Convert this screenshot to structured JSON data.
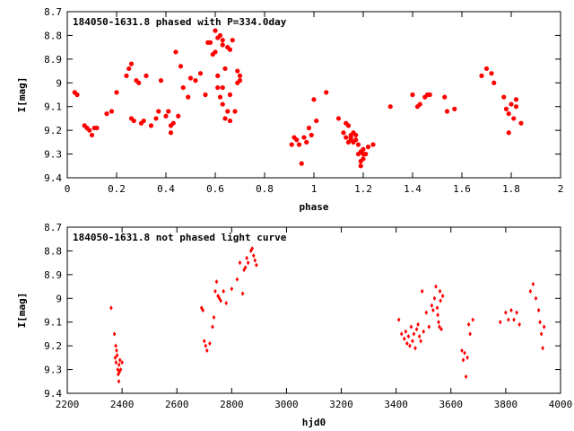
{
  "chart_data": [
    {
      "type": "scatter",
      "title": "184050-1631.8 phased with P=334.0day",
      "xlabel": "phase",
      "ylabel": "I[mag]",
      "xlim": [
        0,
        2
      ],
      "ylim": [
        8.7,
        9.4
      ],
      "y_inverted": true,
      "xticks": [
        "0",
        "0.2",
        "0.4",
        "0.6",
        "0.8",
        "1",
        "1.2",
        "1.4",
        "1.6",
        "1.8",
        "2"
      ],
      "yticks": [
        "8.7",
        "8.8",
        "8.9",
        "9",
        "9.1",
        "9.2",
        "9.3",
        "9.4"
      ],
      "grid": false,
      "marker": "filled-circle",
      "color": "#ff0000",
      "series": [
        {
          "x": [
            0.03,
            0.04,
            0.07,
            0.08,
            0.09,
            0.1,
            0.11,
            0.12,
            0.16,
            0.18,
            0.2,
            0.24,
            0.25,
            0.26,
            0.26,
            0.27,
            0.28,
            0.29,
            0.3,
            0.31,
            0.32,
            0.34,
            0.36,
            0.37,
            0.38,
            0.4,
            0.41,
            0.42,
            0.42,
            0.43,
            0.44,
            0.45,
            0.46,
            0.47,
            0.49,
            0.5,
            0.52,
            0.54,
            0.56,
            0.57,
            0.58,
            0.59,
            0.6,
            0.6,
            0.61,
            0.61,
            0.61,
            0.62,
            0.62,
            0.63,
            0.63,
            0.63,
            0.63,
            0.64,
            0.64,
            0.65,
            0.65,
            0.66,
            0.66,
            0.66,
            0.67,
            0.68,
            0.69,
            0.69,
            0.7,
            0.7
          ],
          "y": [
            9.04,
            9.05,
            9.18,
            9.19,
            9.2,
            9.22,
            9.19,
            9.19,
            9.13,
            9.12,
            9.04,
            8.97,
            8.94,
            9.15,
            8.92,
            9.16,
            8.99,
            9.0,
            9.17,
            9.16,
            8.97,
            9.18,
            9.15,
            9.12,
            8.99,
            9.14,
            9.12,
            9.21,
            9.18,
            9.17,
            8.87,
            9.14,
            8.93,
            9.02,
            9.06,
            8.98,
            8.99,
            8.96,
            9.05,
            8.83,
            8.83,
            8.88,
            8.78,
            8.87,
            8.81,
            8.97,
            9.02,
            8.8,
            9.06,
            8.82,
            9.02,
            9.09,
            8.84,
            8.94,
            9.15,
            8.85,
            9.12,
            8.86,
            9.05,
            9.16,
            8.82,
            9.12,
            8.95,
            9.0,
            8.97,
            8.99
          ]
        },
        {
          "x": [
            0.91,
            0.92,
            0.93,
            0.94,
            0.95,
            0.96,
            0.97,
            0.98,
            0.99,
            1.0,
            1.01,
            1.05,
            1.1,
            1.12,
            1.13,
            1.13,
            1.14,
            1.14,
            1.15,
            1.15,
            1.15,
            1.16,
            1.16,
            1.17,
            1.17,
            1.18,
            1.18,
            1.19,
            1.19,
            1.19,
            1.2,
            1.2,
            1.2,
            1.21,
            1.22,
            1.24
          ],
          "y": [
            9.26,
            9.23,
            9.24,
            9.26,
            9.34,
            9.23,
            9.25,
            9.19,
            9.22,
            9.07,
            9.16,
            9.04,
            9.15,
            9.21,
            9.23,
            9.17,
            9.25,
            9.18,
            9.22,
            9.24,
            9.23,
            9.25,
            9.21,
            9.24,
            9.22,
            9.3,
            9.26,
            9.35,
            9.29,
            9.33,
            9.32,
            9.28,
            9.3,
            9.3,
            9.27,
            9.26
          ]
        },
        {
          "x": [
            1.31,
            1.4,
            1.42,
            1.43,
            1.45,
            1.46,
            1.47,
            1.53,
            1.54,
            1.57,
            1.68,
            1.7,
            1.72,
            1.73,
            1.77,
            1.78,
            1.79,
            1.79,
            1.8,
            1.81,
            1.82,
            1.82,
            1.84
          ],
          "y": [
            9.1,
            9.05,
            9.1,
            9.09,
            9.06,
            9.05,
            9.05,
            9.06,
            9.12,
            9.11,
            8.97,
            8.94,
            8.96,
            9.0,
            9.06,
            9.11,
            9.13,
            9.21,
            9.09,
            9.15,
            9.07,
            9.1,
            9.17
          ]
        }
      ]
    },
    {
      "type": "scatter",
      "title": "184050-1631.8 not phased light curve",
      "xlabel": "hjd0",
      "ylabel": "I[mag]",
      "xlim": [
        2200,
        4000
      ],
      "ylim": [
        8.7,
        9.4
      ],
      "y_inverted": true,
      "xticks": [
        "2200",
        "2400",
        "2600",
        "2800",
        "3000",
        "3200",
        "3400",
        "3600",
        "3800",
        "4000"
      ],
      "yticks": [
        "8.7",
        "8.8",
        "8.9",
        "9",
        "9.1",
        "9.2",
        "9.3",
        "9.4"
      ],
      "grid": false,
      "marker": "small-diamond",
      "color": "#ff0000",
      "series": [
        {
          "x": [
            2360,
            2372,
            2375,
            2377,
            2378,
            2380,
            2382,
            2384,
            2386,
            2388,
            2389,
            2390,
            2392,
            2395,
            2400,
            2690,
            2695,
            2700,
            2705,
            2710,
            2720,
            2730,
            2735,
            2740,
            2745,
            2750,
            2755,
            2760,
            2770,
            2780,
            2800,
            2820,
            2830,
            2840,
            2845,
            2850,
            2855,
            2860,
            2870,
            2875,
            2880,
            2885,
            2890
          ],
          "y": [
            9.04,
            9.15,
            9.25,
            9.2,
            9.27,
            9.22,
            9.24,
            9.3,
            9.32,
            9.35,
            9.28,
            9.31,
            9.26,
            9.3,
            9.27,
            9.04,
            9.05,
            9.18,
            9.2,
            9.22,
            9.19,
            9.12,
            9.08,
            8.97,
            8.93,
            8.99,
            9.0,
            9.01,
            8.97,
            9.02,
            8.96,
            8.92,
            8.85,
            8.98,
            8.88,
            8.87,
            8.83,
            8.85,
            8.8,
            8.79,
            8.82,
            8.84,
            8.86
          ]
        },
        {
          "x": [
            3410,
            3420,
            3430,
            3435,
            3440,
            3445,
            3450,
            3455,
            3460,
            3465,
            3470,
            3475,
            3480,
            3485,
            3490,
            3495,
            3500,
            3510,
            3520,
            3530,
            3535,
            3540,
            3545,
            3550,
            3552,
            3555,
            3558,
            3560,
            3562,
            3565,
            3570,
            3640,
            3645,
            3650,
            3655,
            3660,
            3665,
            3670,
            3680,
            3780,
            3800,
            3810,
            3820,
            3830,
            3840,
            3850,
            3890,
            3900,
            3910,
            3920,
            3925,
            3930,
            3935,
            3940
          ],
          "y": [
            9.09,
            9.15,
            9.17,
            9.14,
            9.19,
            9.16,
            9.2,
            9.12,
            9.18,
            9.15,
            9.21,
            9.13,
            9.11,
            9.16,
            9.18,
            8.97,
            9.14,
            9.06,
            9.12,
            9.03,
            9.05,
            9.0,
            8.95,
            9.04,
            9.07,
            9.1,
            9.12,
            8.97,
            9.01,
            9.13,
            8.99,
            9.22,
            9.26,
            9.23,
            9.33,
            9.25,
            9.11,
            9.15,
            9.09,
            9.1,
            9.06,
            9.09,
            9.05,
            9.09,
            9.06,
            9.11,
            8.97,
            8.94,
            9.0,
            9.05,
            9.1,
            9.15,
            9.21,
            9.12
          ]
        }
      ]
    }
  ]
}
